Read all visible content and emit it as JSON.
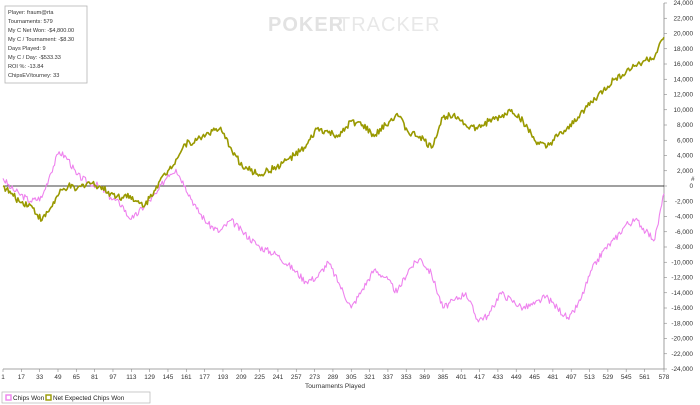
{
  "watermark": {
    "part1": "POKER",
    "part2": "TRACKER"
  },
  "stats": [
    "Player: fraum@rta",
    "Tournaments: 579",
    "My C Net Won: -$4,800.00",
    "My C / Tournament: -$8.30",
    "Days Played: 9",
    "My C / Day: -$533.33",
    "ROI %: -13.84",
    "ChipsEV/tourney: 33"
  ],
  "colors": {
    "chips_won": "#ee82ee",
    "net_expected": "#999900",
    "zero_line": "#000000",
    "axis": "#888888"
  },
  "chart_data": {
    "type": "line",
    "xlabel": "Tournaments Played",
    "ylabel": "",
    "xlim": [
      1,
      578
    ],
    "ylim": [
      -24000,
      24000
    ],
    "x_ticks": [
      1,
      17,
      33,
      49,
      65,
      81,
      97,
      113,
      129,
      145,
      161,
      177,
      193,
      209,
      225,
      241,
      257,
      273,
      289,
      305,
      321,
      337,
      353,
      369,
      385,
      401,
      417,
      433,
      449,
      465,
      481,
      497,
      513,
      529,
      545,
      561,
      578
    ],
    "y_ticks": [
      24000,
      22000,
      20000,
      18000,
      16000,
      14000,
      12000,
      10000,
      8000,
      6000,
      4000,
      2000,
      0,
      -2000,
      -4000,
      -6000,
      -8000,
      -10000,
      -12000,
      -14000,
      -16000,
      -18000,
      -20000,
      -22000,
      -24000
    ],
    "y_tick_labels": [
      "24,000",
      "22,000",
      "20,000",
      "18,000",
      "16,000",
      "14,000",
      "12,000",
      "10,000",
      "8,000",
      "6,000",
      "4,000",
      "2,000",
      "0",
      "-2,000",
      "-4,000",
      "-6,000",
      "-8,000",
      "-10,000",
      "-12,000",
      "-14,000",
      "-16,000",
      "-18,000",
      "-20,000",
      "-22,000",
      "-24,000"
    ],
    "axis_marker": "#",
    "legend": {
      "position": "bottom-left",
      "entries": [
        "Chips Won",
        "Net Expected Chips Won"
      ]
    },
    "series": [
      {
        "name": "Chips Won",
        "x": [
          1,
          8,
          15,
          25,
          35,
          42,
          50,
          58,
          65,
          75,
          85,
          95,
          105,
          110,
          115,
          125,
          135,
          145,
          152,
          160,
          170,
          180,
          190,
          200,
          210,
          225,
          240,
          255,
          265,
          275,
          285,
          295,
          305,
          315,
          325,
          335,
          345,
          355,
          365,
          375,
          385,
          395,
          405,
          415,
          425,
          435,
          445,
          455,
          465,
          475,
          485,
          495,
          505,
          515,
          525,
          535,
          545,
          555,
          562,
          570,
          578
        ],
        "y": [
          1000,
          -300,
          -1000,
          -2000,
          -1500,
          1500,
          4500,
          3500,
          1500,
          500,
          0,
          -1500,
          -2500,
          -4000,
          -4200,
          -2500,
          -1000,
          1500,
          2200,
          0,
          -3000,
          -5000,
          -6000,
          -4500,
          -6000,
          -8000,
          -9000,
          -11000,
          -12500,
          -12000,
          -10000,
          -13000,
          -16000,
          -13500,
          -11000,
          -12000,
          -14000,
          -11000,
          -9500,
          -11500,
          -16000,
          -15000,
          -14000,
          -17500,
          -17000,
          -14000,
          -15000,
          -16000,
          -15500,
          -14500,
          -16000,
          -17500,
          -15000,
          -11000,
          -8500,
          -7000,
          -5000,
          -4500,
          -6000,
          -7000,
          -1000
        ]
      },
      {
        "name": "Net Expected Chips Won",
        "x": [
          1,
          8,
          15,
          25,
          35,
          42,
          50,
          58,
          65,
          75,
          85,
          95,
          105,
          110,
          115,
          125,
          135,
          145,
          152,
          160,
          170,
          180,
          190,
          200,
          210,
          225,
          240,
          255,
          265,
          275,
          285,
          295,
          305,
          315,
          325,
          335,
          345,
          355,
          365,
          375,
          385,
          395,
          405,
          415,
          425,
          435,
          445,
          455,
          465,
          475,
          485,
          495,
          505,
          515,
          525,
          535,
          545,
          555,
          562,
          570,
          578
        ],
        "y": [
          0,
          -1000,
          -2000,
          -2500,
          -4500,
          -3000,
          -1000,
          0,
          -500,
          500,
          0,
          -1000,
          -1500,
          -1000,
          -2000,
          -2500,
          0,
          2000,
          3500,
          5500,
          6000,
          7000,
          7500,
          5000,
          2500,
          1500,
          2500,
          4000,
          5000,
          7500,
          7000,
          6500,
          8500,
          8000,
          6500,
          8000,
          9500,
          7000,
          6500,
          5000,
          9000,
          9500,
          8000,
          7500,
          8500,
          9000,
          10000,
          8500,
          6000,
          5000,
          6500,
          7500,
          9500,
          11000,
          12500,
          14000,
          15000,
          16000,
          16500,
          17000,
          19500
        ]
      }
    ]
  }
}
